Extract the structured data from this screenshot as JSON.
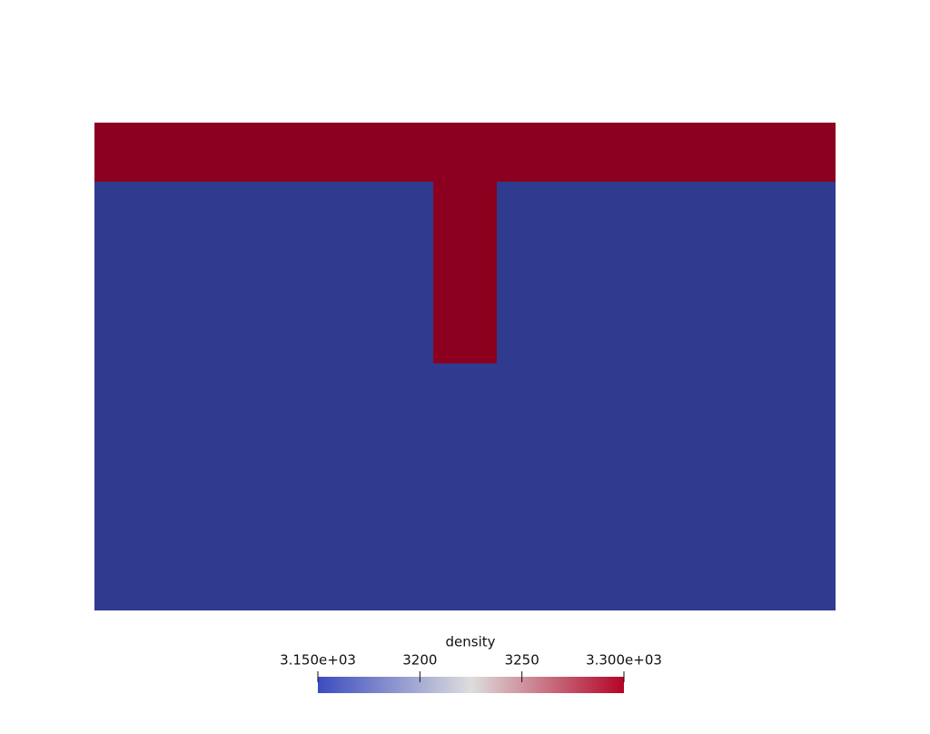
{
  "colorbar": {
    "title": "density",
    "range": [
      3150,
      3300
    ],
    "ticks": [
      {
        "value": 3150,
        "label": "3.150e+03"
      },
      3200,
      3250,
      {
        "value": 3300,
        "label": "3.300e+03"
      }
    ],
    "colormap": [
      "#3b4cc0",
      "#dddddd",
      "#b40426"
    ]
  },
  "regions": [
    {
      "value": 3300,
      "color": "#8c001f"
    },
    {
      "value": 3150,
      "color": "#2f3b8f"
    }
  ]
}
